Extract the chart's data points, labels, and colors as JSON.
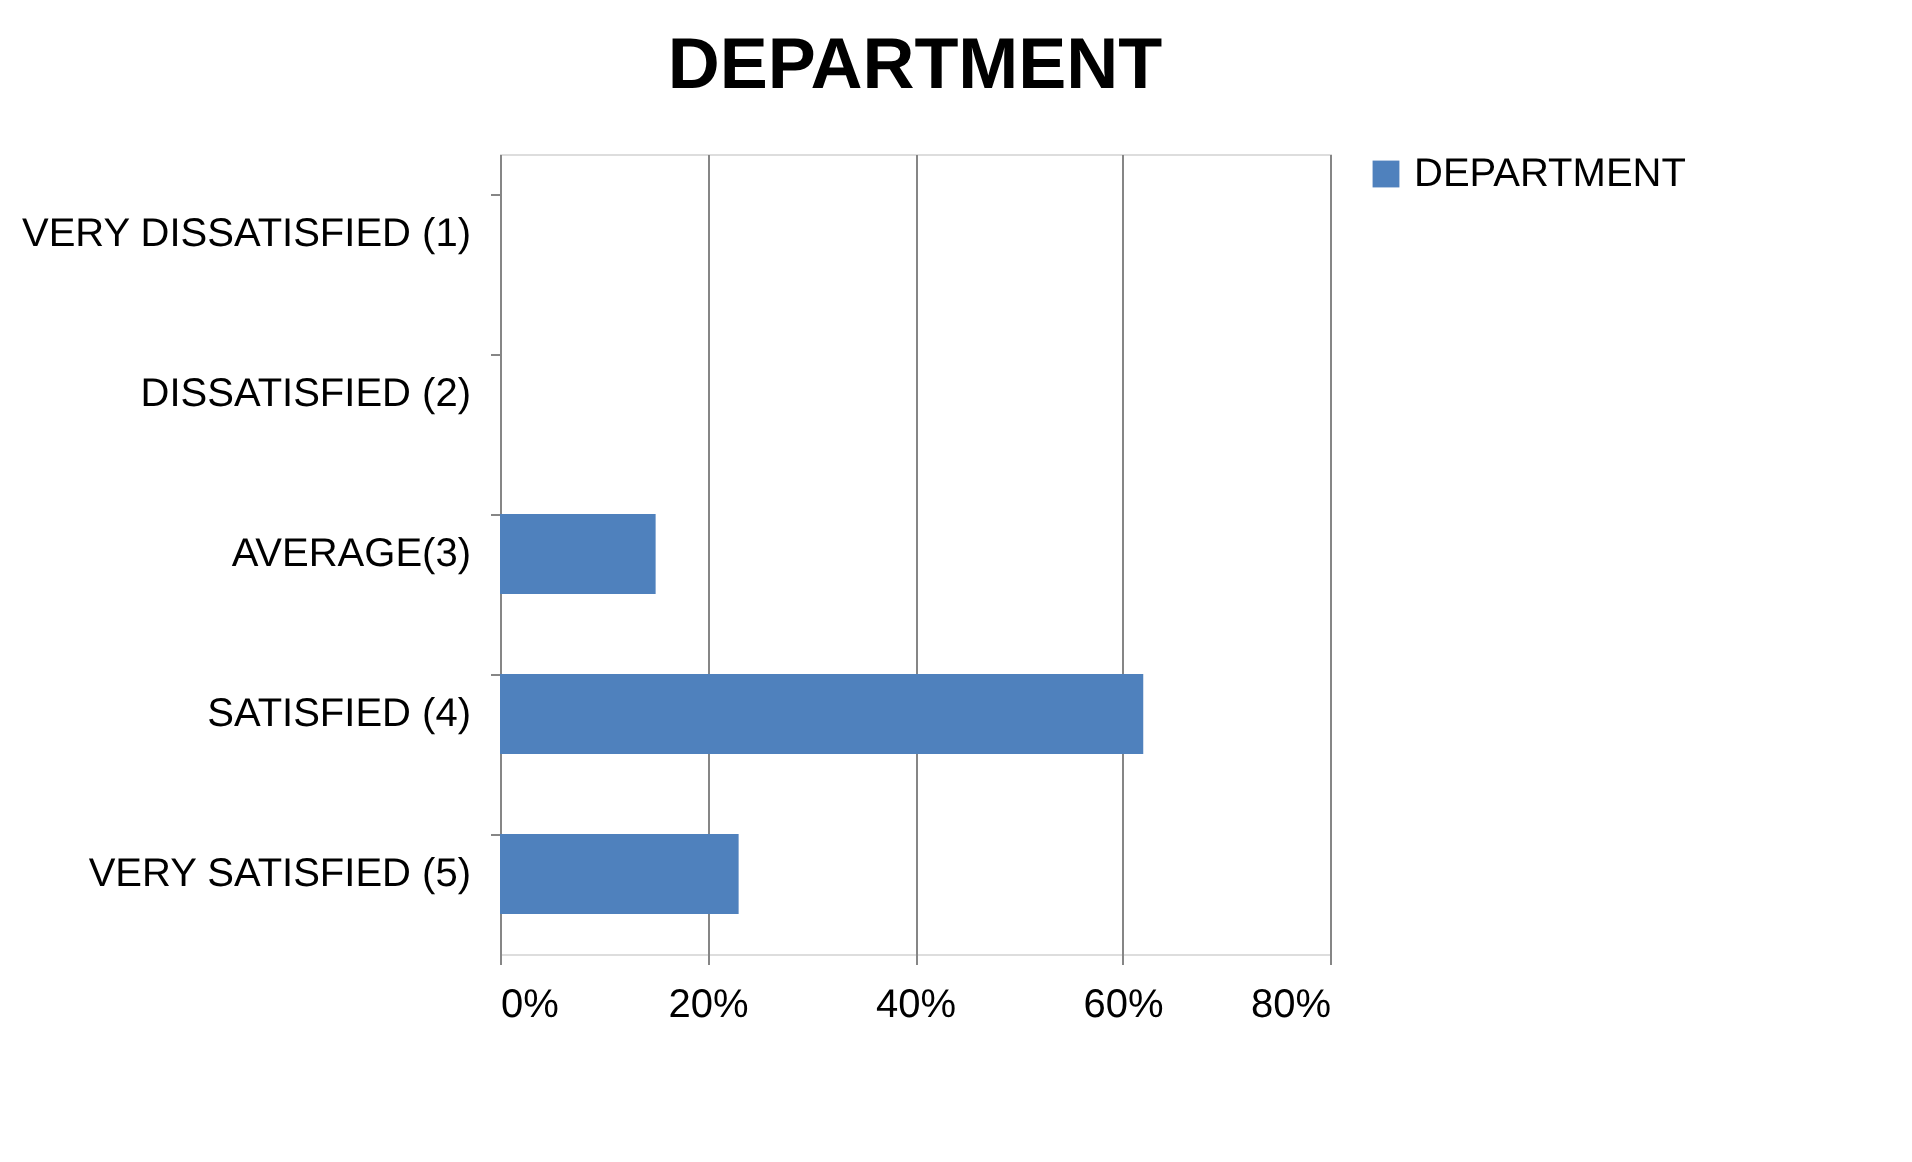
{
  "chart_data": {
    "type": "bar",
    "orientation": "horizontal",
    "title": "DEPARTMENT",
    "categories": [
      "VERY DISSATISFIED (1)",
      "DISSATISFIED (2)",
      "AVERAGE(3)",
      "SATISFIED (4)",
      "VERY SATISFIED (5)"
    ],
    "series": [
      {
        "name": "DEPARTMENT",
        "color": "#4f81bd",
        "values": [
          0,
          0,
          15,
          62,
          23
        ]
      }
    ],
    "xlim": [
      0,
      80
    ],
    "xticks": [
      {
        "value": 0,
        "label": "0%"
      },
      {
        "value": 20,
        "label": "20%"
      },
      {
        "value": 40,
        "label": "40%"
      },
      {
        "value": 60,
        "label": "60%"
      },
      {
        "value": 80,
        "label": "80%"
      }
    ],
    "grid": "x",
    "legend": "right"
  }
}
